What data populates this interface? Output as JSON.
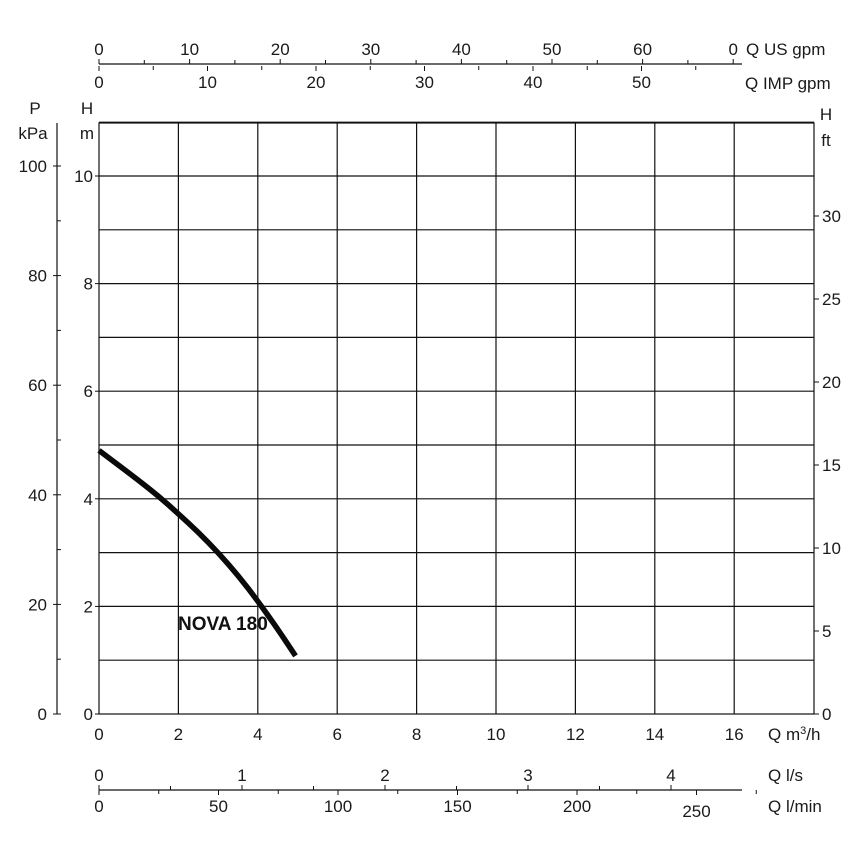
{
  "chart_data": {
    "type": "line",
    "grid": true,
    "series": [
      {
        "name": "NOVA 180",
        "color": "#0a0a0a",
        "x_unit": "Q m³/h",
        "y_unit": "H m",
        "points": [
          [
            0,
            4.9
          ],
          [
            0.5,
            4.62
          ],
          [
            1,
            4.34
          ],
          [
            1.5,
            4.05
          ],
          [
            2,
            3.72
          ],
          [
            2.5,
            3.38
          ],
          [
            3,
            3.0
          ],
          [
            3.5,
            2.58
          ],
          [
            4,
            2.1
          ],
          [
            4.5,
            1.58
          ],
          [
            4.95,
            1.08
          ]
        ]
      }
    ],
    "axes": {
      "top_us_gpm": {
        "label": "Q US gpm",
        "ticks": [
          "0",
          "10",
          "20",
          "30",
          "40",
          "50",
          "60",
          "0"
        ]
      },
      "top_imp_gpm": {
        "label": "Q IMP gpm",
        "ticks": [
          "0",
          "10",
          "20",
          "30",
          "40",
          "50"
        ]
      },
      "pressure_kpa": {
        "label_top": "P",
        "label_bottom": "kPa",
        "ticks": [
          "0",
          "20",
          "40",
          "60",
          "80",
          "100"
        ]
      },
      "head_m": {
        "label_top": "H",
        "label_bottom": "m",
        "ticks": [
          "0",
          "2",
          "4",
          "6",
          "8",
          "10"
        ],
        "ylim": [
          0,
          11
        ]
      },
      "head_ft": {
        "label_top": "H",
        "label_bottom": "ft",
        "ticks": [
          "0",
          "5",
          "10",
          "15",
          "20",
          "25",
          "30"
        ]
      },
      "flow_m3h": {
        "label": "Q m³/h",
        "ticks": [
          "0",
          "2",
          "4",
          "6",
          "8",
          "10",
          "12",
          "14",
          "16"
        ],
        "xlim": [
          0,
          18
        ]
      },
      "flow_ls": {
        "label": "Q l/s",
        "ticks": [
          "0",
          "1",
          "2",
          "3",
          "4"
        ]
      },
      "flow_lmin": {
        "label": "Q l/min",
        "ticks": [
          "0",
          "50",
          "100",
          "150",
          "200",
          "250"
        ]
      }
    }
  }
}
